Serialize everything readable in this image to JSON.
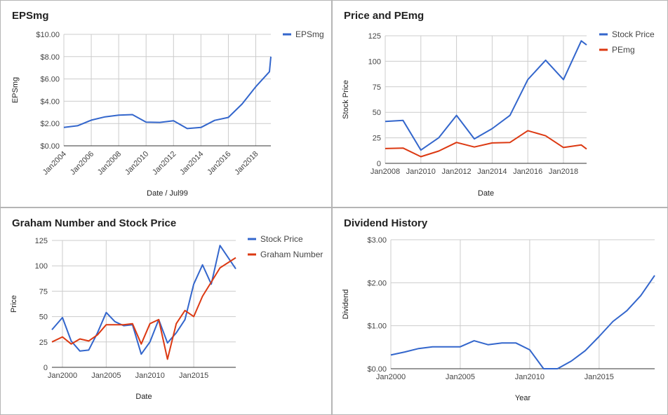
{
  "colors": {
    "blue": "#3366cc",
    "red": "#dc3912",
    "grid": "#cccccc",
    "text": "#444444"
  },
  "chart_data": [
    {
      "id": "epsmg",
      "type": "line",
      "title": "EPSmg",
      "xlabel": "Date / Jul99",
      "ylabel": "EPSmg",
      "ylim": [
        0,
        10
      ],
      "yticks": [
        0,
        2,
        4,
        6,
        8,
        10
      ],
      "ytick_labels": [
        "$0.00",
        "$2.00",
        "$4.00",
        "$6.00",
        "$8.00",
        "$10.00"
      ],
      "xlim": [
        2004,
        2019.1
      ],
      "xticks": [
        2004,
        2006,
        2008,
        2010,
        2012,
        2014,
        2016,
        2018
      ],
      "xtick_labels": [
        "Jan2004",
        "Jan2006",
        "Jan2008",
        "Jan2010",
        "Jan2012",
        "Jan2014",
        "Jan2016",
        "Jan2018"
      ],
      "x_rotated": true,
      "legend_position": "right",
      "series": [
        {
          "name": "EPSmg",
          "color": "#3366cc",
          "x": [
            2004,
            2005,
            2006,
            2007,
            2008,
            2009,
            2010,
            2011,
            2012,
            2013,
            2014,
            2015,
            2016,
            2017,
            2018,
            2019,
            2019.1
          ],
          "y": [
            1.65,
            1.8,
            2.3,
            2.6,
            2.75,
            2.8,
            2.12,
            2.1,
            2.25,
            1.55,
            1.65,
            2.28,
            2.55,
            3.75,
            5.3,
            6.65,
            8.0
          ]
        }
      ]
    },
    {
      "id": "price_pemg",
      "type": "line",
      "title": "Price and PEmg",
      "xlabel": "Date",
      "ylabel": "Stock Price",
      "ylim": [
        0,
        125
      ],
      "yticks": [
        0,
        25,
        50,
        75,
        100,
        125
      ],
      "ytick_labels": [
        "0",
        "25",
        "50",
        "75",
        "100",
        "125"
      ],
      "xlim": [
        2008,
        2019.3
      ],
      "xticks": [
        2008,
        2010,
        2012,
        2014,
        2016,
        2018
      ],
      "xtick_labels": [
        "Jan2008",
        "Jan2010",
        "Jan2012",
        "Jan2014",
        "Jan2016",
        "Jan2018"
      ],
      "x_rotated": false,
      "legend_position": "right",
      "series": [
        {
          "name": "Stock Price",
          "color": "#3366cc",
          "x": [
            2008,
            2009,
            2010,
            2011,
            2012,
            2013,
            2014,
            2015,
            2016,
            2017,
            2018,
            2019,
            2019.3
          ],
          "y": [
            41,
            42,
            13,
            25,
            47,
            24,
            34,
            47,
            82,
            101,
            82,
            120,
            116
          ]
        },
        {
          "name": "PEmg",
          "color": "#dc3912",
          "x": [
            2008,
            2009,
            2010,
            2011,
            2012,
            2013,
            2014,
            2015,
            2016,
            2017,
            2018,
            2019,
            2019.3
          ],
          "y": [
            14.5,
            15,
            6.5,
            12,
            20.5,
            16,
            20,
            20.5,
            32,
            27,
            15.5,
            18,
            14
          ]
        }
      ]
    },
    {
      "id": "graham",
      "type": "line",
      "title": "Graham Number and Stock Price",
      "xlabel": "Date",
      "ylabel": "Price",
      "ylim": [
        0,
        125
      ],
      "yticks": [
        0,
        25,
        50,
        75,
        100,
        125
      ],
      "ytick_labels": [
        "0",
        "25",
        "50",
        "75",
        "100",
        "125"
      ],
      "xlim": [
        1998.8,
        2019.8
      ],
      "xticks": [
        2000,
        2005,
        2010,
        2015
      ],
      "xtick_labels": [
        "Jan2000",
        "Jan2005",
        "Jan2010",
        "Jan2015"
      ],
      "x_rotated": false,
      "legend_position": "right",
      "series": [
        {
          "name": "Stock Price",
          "color": "#3366cc",
          "x": [
            1998.8,
            2000,
            2001,
            2002,
            2003,
            2004,
            2005,
            2006,
            2007,
            2008,
            2009,
            2010,
            2011,
            2012,
            2013,
            2014,
            2015,
            2016,
            2017,
            2018,
            2019.8
          ],
          "y": [
            37,
            49,
            26,
            16,
            17,
            34,
            54,
            45,
            41,
            42,
            13,
            25,
            47,
            24,
            34,
            47,
            82,
            101,
            82,
            120,
            97
          ]
        },
        {
          "name": "Graham Number",
          "color": "#dc3912",
          "x": [
            1998.8,
            2000,
            2001,
            2002,
            2003,
            2004,
            2005,
            2006,
            2007,
            2008,
            2009,
            2010,
            2011,
            2012,
            2013,
            2014,
            2015,
            2016,
            2017,
            2018,
            2019.8
          ],
          "y": [
            25,
            30,
            23,
            28,
            26,
            32,
            42,
            42,
            42,
            43,
            23,
            43,
            47,
            8,
            43,
            56,
            50,
            70,
            84,
            98,
            108
          ]
        }
      ]
    },
    {
      "id": "dividend",
      "type": "line",
      "title": "Dividend History",
      "xlabel": "Year",
      "ylabel": "Dividend",
      "ylim": [
        0,
        3
      ],
      "yticks": [
        0,
        1,
        2,
        3
      ],
      "ytick_labels": [
        "$0.00",
        "$1.00",
        "$2.00",
        "$3.00"
      ],
      "xlim": [
        2000,
        2019
      ],
      "xticks": [
        2000,
        2005,
        2010,
        2015
      ],
      "xtick_labels": [
        "Jan2000",
        "Jan2005",
        "Jan2010",
        "Jan2015"
      ],
      "x_rotated": false,
      "legend_position": "none",
      "series": [
        {
          "name": "",
          "color": "#3366cc",
          "x": [
            2000,
            2001,
            2002,
            2003,
            2004,
            2005,
            2006,
            2007,
            2008,
            2009,
            2010,
            2011,
            2012,
            2013,
            2014,
            2015,
            2016,
            2017,
            2018,
            2019
          ],
          "y": [
            0.32,
            0.39,
            0.47,
            0.51,
            0.51,
            0.51,
            0.65,
            0.56,
            0.6,
            0.6,
            0.44,
            0.0,
            0.0,
            0.18,
            0.42,
            0.75,
            1.1,
            1.35,
            1.7,
            2.17
          ]
        }
      ]
    }
  ]
}
